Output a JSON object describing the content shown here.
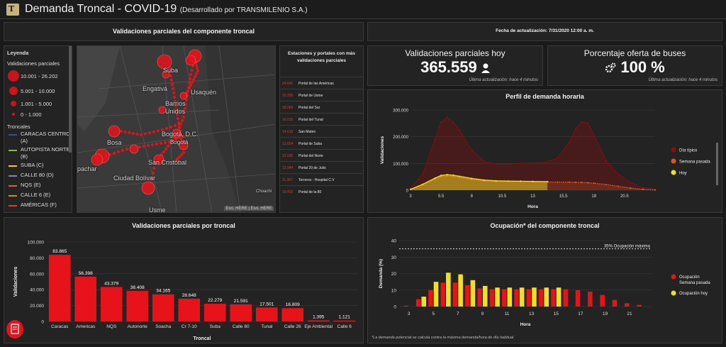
{
  "header": {
    "title": "Demanda Troncal - COVID-19",
    "subtitle": "(Desarrollado por TRANSMILENIO S.A.)",
    "logo_letter": "T"
  },
  "map_panel": {
    "title": "Validaciones parciales del componente troncal",
    "legend_title": "Leyenda",
    "validations_title": "Validaciones parciales",
    "size_classes": [
      "10.001 - 26.202",
      "5.001 - 10.000",
      "1.001 - 5.000",
      "0 - 1.000"
    ],
    "troncales_title": "Troncales",
    "troncales": [
      {
        "label": "CARACAS CENTRO (A)",
        "color": "#2f4fa3"
      },
      {
        "label": "AUTOPISTA NORTE (B)",
        "color": "#7bbf3a"
      },
      {
        "label": "SUBA (C)",
        "color": "#f5c518"
      },
      {
        "label": "CALLE 80 (D)",
        "color": "#8e7cc3"
      },
      {
        "label": "NQS (E)",
        "color": "#c26a2a"
      },
      {
        "label": "CALLE 6 (E)",
        "color": "#c78b2b"
      },
      {
        "label": "AMÉRICAS (F)",
        "color": "#e23a2a"
      }
    ],
    "map_labels": {
      "suba": "Suba",
      "engativa": "Engativá",
      "usaquen": "Usaquén",
      "barrios_unidos": "Barrios Unidos",
      "bogota_dc": "Bogotá, D.C.",
      "bogota": "Bogotá",
      "bosa": "Bosa",
      "san_cristobal": "San Cristóbal",
      "ciudad_bolivar": "Ciudad Bolívar",
      "usme": "Usme",
      "choachi": "Choachí",
      "soacha_partial": "pachar",
      "attribution": "Esri, HERE | Esri, HERE"
    }
  },
  "stations": {
    "title": "Estaciones y portales con más validaciones parciales",
    "items": [
      {
        "value": "24.641",
        "name": "Portal de las Américas"
      },
      {
        "value": "20.255",
        "name": "Portal de Usme"
      },
      {
        "value": "18.069",
        "name": "Portal del Sur"
      },
      {
        "value": "16.015",
        "name": "Portal del Tunal"
      },
      {
        "value": "14.615",
        "name": "San Mateo"
      },
      {
        "value": "13.654",
        "name": "Portal de Suba"
      },
      {
        "value": "13.030",
        "name": "Portal del Norte"
      },
      {
        "value": "12.944",
        "name": "Portal 20 de Julio"
      },
      {
        "value": "11.367",
        "name": "Terreros - Hospital C.V"
      },
      {
        "value": "10.402",
        "name": "Portal de la 80"
      }
    ]
  },
  "update": {
    "text": "Fecha de actualización: 7/31/2020 12:00 a. m."
  },
  "kpi_validaciones": {
    "title": "Validaciones parciales hoy",
    "value": "365.559",
    "note": "Última actualización: hace 4 minutos"
  },
  "kpi_oferta": {
    "title": "Porcentaje oferta de buses",
    "value": "100 %",
    "note": "Última actualización: hace 4 minutos"
  },
  "chart_data": [
    {
      "type": "bar",
      "title": "Validaciones parciales por troncal",
      "xlabel": "Troncal",
      "ylabel": "Validaciones",
      "ylim": [
        0,
        100000
      ],
      "yticks": [
        "0",
        "20.000",
        "40.000",
        "60.000",
        "80.000",
        "100.000"
      ],
      "categories": [
        "Caracas",
        "Americas",
        "NQS",
        "Autonorte",
        "Soacha",
        "Cr 7-10",
        "Suba",
        "Calle 80",
        "Tunal",
        "Calle 26",
        "Eje Ambiental",
        "Calle 6"
      ],
      "values": [
        83865,
        56398,
        43379,
        38408,
        34165,
        28648,
        22279,
        21591,
        17501,
        16809,
        1395,
        1121
      ],
      "labels": [
        "83.865",
        "56.398",
        "43.379",
        "38.408",
        "34.165",
        "28.648",
        "22.279",
        "21.591",
        "17.501",
        "16.809",
        "1.395",
        "1.121"
      ],
      "color": "#e8121b"
    },
    {
      "type": "area",
      "title": "Perfil de demanda horaria",
      "xlabel": "Hora",
      "ylabel": "Validaciones",
      "ylim": [
        0,
        300000
      ],
      "xlim": [
        3,
        23
      ],
      "yticks": [
        "0",
        "100.000",
        "200.000",
        "300.000"
      ],
      "xticks": [
        "3",
        "5.5",
        "8",
        "10.5",
        "13",
        "15.5",
        "18",
        "20.5"
      ],
      "x": [
        3,
        4,
        5,
        5.5,
        6,
        6.5,
        7,
        8,
        9,
        10,
        11,
        12,
        13,
        14,
        15,
        16,
        16.5,
        17,
        17.5,
        18,
        19,
        20,
        21,
        22,
        23
      ],
      "series": [
        {
          "name": "Día típico",
          "color": "#8b0e0e",
          "values": [
            8000,
            60000,
            190000,
            255000,
            272000,
            255000,
            225000,
            150000,
            108000,
            98000,
            97000,
            100000,
            102000,
            104000,
            120000,
            180000,
            230000,
            255000,
            252000,
            205000,
            110000,
            60000,
            28000,
            10000,
            3000
          ]
        },
        {
          "name": "Semana pasada",
          "color": "#e0521f",
          "values": [
            3000,
            20000,
            42000,
            50000,
            52000,
            51000,
            48000,
            40000,
            35000,
            33000,
            32500,
            32000,
            31000,
            30500,
            30000,
            30000,
            29500,
            29000,
            28000,
            26000,
            21000,
            14000,
            8000,
            3000,
            1000
          ]
        },
        {
          "name": "Hoy",
          "color": "#f2e01a",
          "x": [
            3,
            4,
            5,
            5.5,
            6,
            6.5,
            7,
            8,
            9,
            10,
            11,
            12,
            13,
            14.2
          ],
          "values": [
            3000,
            22000,
            45000,
            55000,
            58000,
            56000,
            52000,
            44000,
            38000,
            35000,
            34000,
            33500,
            33000,
            32000
          ]
        }
      ]
    },
    {
      "type": "bar",
      "title": "Ocupación* del componente troncal",
      "xlabel": "Hora",
      "ylabel": "Demanda (%)",
      "ylim": [
        0,
        40
      ],
      "yticks": [
        "0",
        "10",
        "20",
        "30",
        "40"
      ],
      "xticks": [
        "3",
        "5",
        "7",
        "9",
        "11",
        "13",
        "15",
        "17",
        "19",
        "21"
      ],
      "hours": [
        3,
        4,
        5,
        6,
        7,
        8,
        9,
        10,
        11,
        12,
        13,
        14,
        15,
        16,
        17,
        18,
        19,
        20,
        21,
        22
      ],
      "reference_line": {
        "value": 35,
        "label": "35% Ocupación máxima"
      },
      "series": [
        {
          "name": "Ocupación Semana pasada",
          "color": "#e8121b",
          "values": [
            0.5,
            4.5,
            10,
            14.5,
            14.5,
            13,
            11,
            10.5,
            10.5,
            10.5,
            10.5,
            10.5,
            10.5,
            10.5,
            10,
            9,
            7,
            4,
            2,
            1
          ]
        },
        {
          "name": "Ocupación hoy",
          "color": "#f2e01a",
          "values": [
            null,
            6,
            15,
            20.5,
            19.5,
            16,
            12.5,
            11.5,
            11.5,
            11.5,
            11.5,
            11.5,
            11.5,
            null,
            null,
            null,
            null,
            null,
            null,
            null
          ]
        }
      ],
      "footnote": "*La demanda potencial se calcula contra la máxima demanda/hora de día habitual"
    }
  ]
}
